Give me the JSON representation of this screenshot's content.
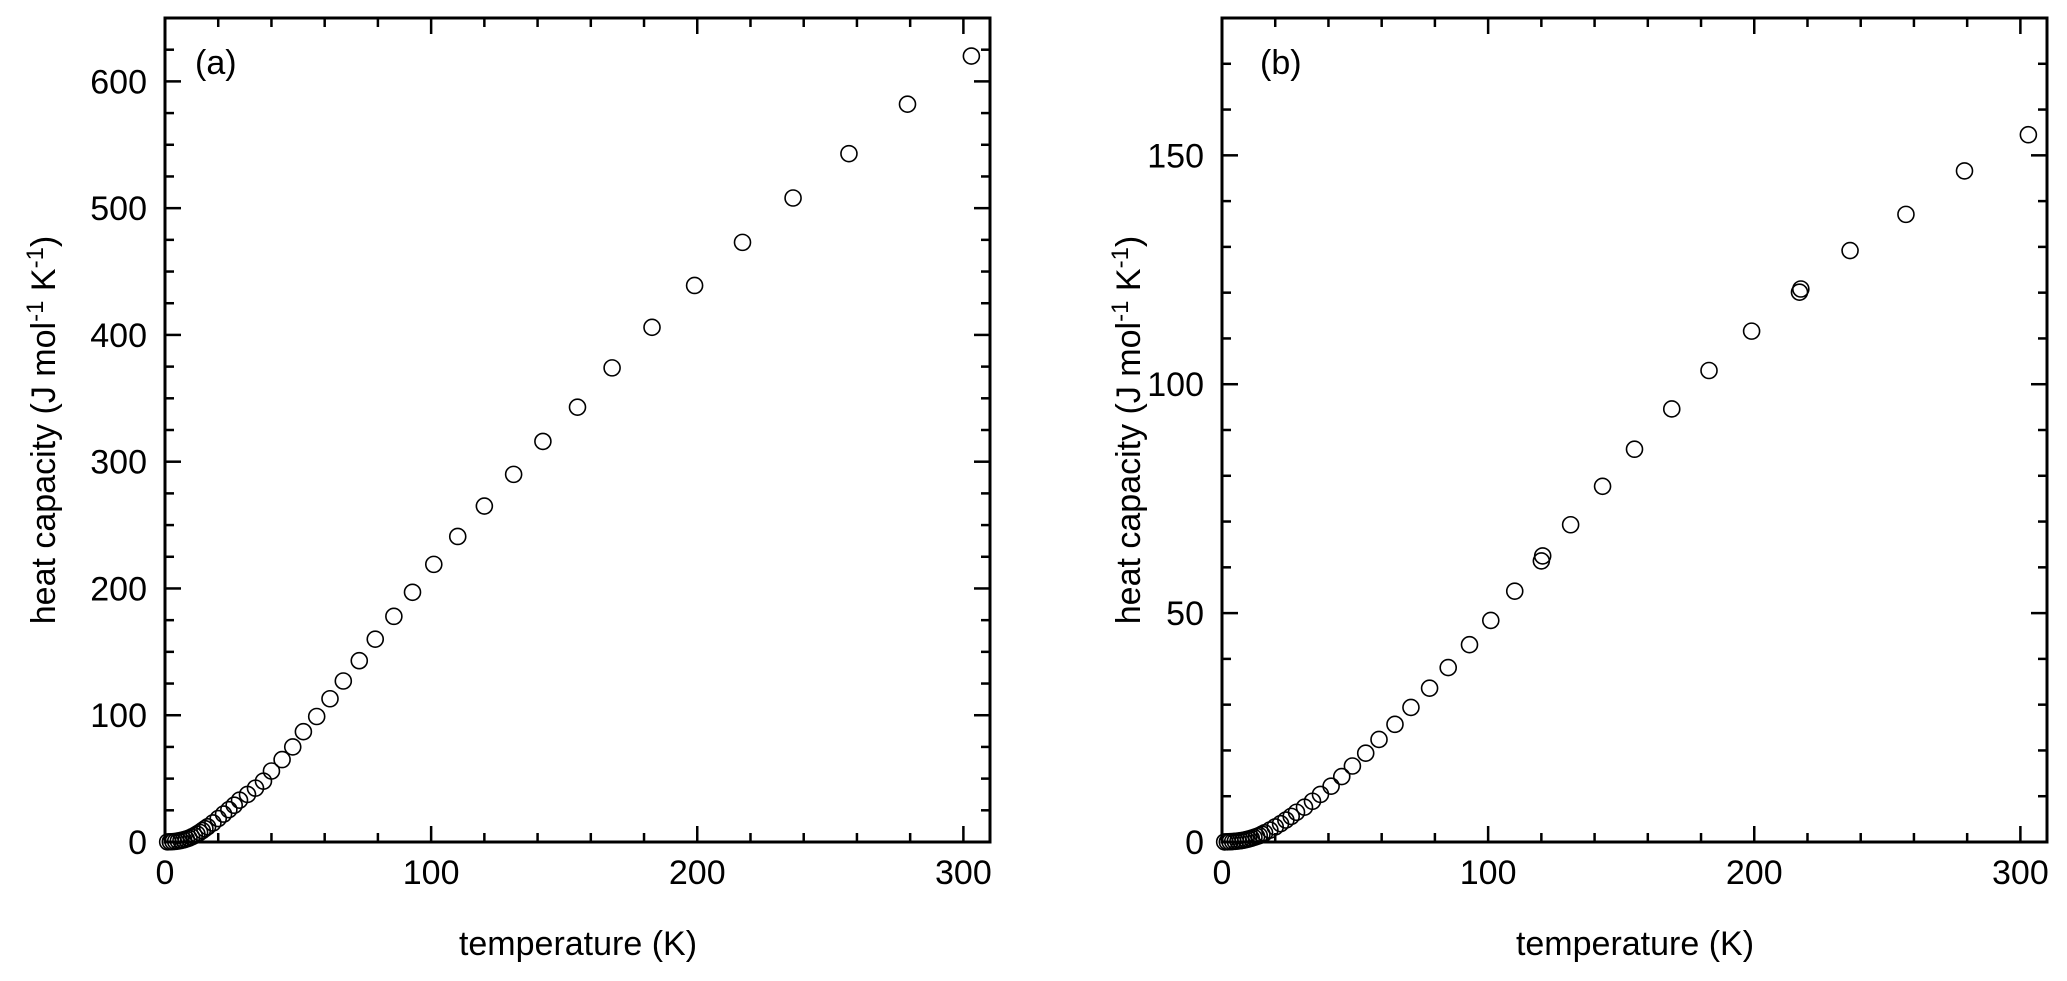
{
  "chart_data": [
    {
      "type": "scatter",
      "panel_label": "(a)",
      "xlabel": "temperature (K)",
      "ylabel": "heat capacity (J mol",
      "ylabel_sup1": "-1",
      "ylabel_mid": " K",
      "ylabel_sup2": "-1",
      "ylabel_end": ")",
      "xlim": [
        0,
        310
      ],
      "ylim": [
        0,
        650
      ],
      "xticks": [
        0,
        100,
        200,
        300
      ],
      "xtick_labels": [
        "0",
        "100",
        "200",
        "300"
      ],
      "yticks": [
        0,
        100,
        200,
        300,
        400,
        500,
        600
      ],
      "ytick_labels": [
        "0",
        "100",
        "200",
        "300",
        "400",
        "500",
        "600"
      ],
      "grid": false,
      "marker": "open-circle",
      "points": [
        [
          1,
          0.1
        ],
        [
          2,
          0.2
        ],
        [
          3,
          0.3
        ],
        [
          4,
          0.5
        ],
        [
          5,
          0.8
        ],
        [
          6,
          1.2
        ],
        [
          7,
          1.7
        ],
        [
          8,
          2.3
        ],
        [
          9,
          3
        ],
        [
          10,
          4
        ],
        [
          11,
          5
        ],
        [
          12,
          6.3
        ],
        [
          13,
          7.6
        ],
        [
          14,
          9
        ],
        [
          15,
          10.5
        ],
        [
          16,
          12
        ],
        [
          18,
          15
        ],
        [
          20,
          18.5
        ],
        [
          22,
          22
        ],
        [
          24,
          25.5
        ],
        [
          26,
          29
        ],
        [
          28,
          33
        ],
        [
          31,
          37.5
        ],
        [
          34,
          42.5
        ],
        [
          37,
          48
        ],
        [
          40,
          56
        ],
        [
          44,
          65
        ],
        [
          48,
          75
        ],
        [
          52,
          87
        ],
        [
          57,
          99
        ],
        [
          62,
          113
        ],
        [
          67,
          127
        ],
        [
          73,
          143
        ],
        [
          79,
          160
        ],
        [
          86,
          178
        ],
        [
          93,
          197
        ],
        [
          101,
          219
        ],
        [
          110,
          241
        ],
        [
          120,
          265
        ],
        [
          131,
          290
        ],
        [
          142,
          316
        ],
        [
          155,
          343
        ],
        [
          168,
          374
        ],
        [
          183,
          406
        ],
        [
          199,
          439
        ],
        [
          217,
          473
        ],
        [
          236,
          508
        ],
        [
          257,
          543
        ],
        [
          279,
          582
        ],
        [
          303,
          620
        ]
      ]
    },
    {
      "type": "scatter",
      "panel_label": "(b)",
      "xlabel": "temperature (K)",
      "ylabel": "heat capacity (J mol",
      "ylabel_sup1": "-1",
      "ylabel_mid": " K",
      "ylabel_sup2": "-1",
      "ylabel_end": ")",
      "xlim": [
        0,
        310
      ],
      "ylim": [
        0,
        180
      ],
      "xticks": [
        0,
        100,
        200,
        300
      ],
      "xtick_labels": [
        "0",
        "100",
        "200",
        "300"
      ],
      "yticks": [
        0,
        50,
        100,
        150
      ],
      "ytick_labels": [
        "0",
        "50",
        "100",
        "150"
      ],
      "grid": false,
      "marker": "open-circle",
      "points": [
        [
          1,
          0.02
        ],
        [
          2,
          0.04
        ],
        [
          3,
          0.06
        ],
        [
          4,
          0.1
        ],
        [
          5,
          0.15
        ],
        [
          6,
          0.2
        ],
        [
          7,
          0.28
        ],
        [
          8,
          0.38
        ],
        [
          9,
          0.5
        ],
        [
          10,
          0.65
        ],
        [
          11,
          0.82
        ],
        [
          12,
          1.0
        ],
        [
          13,
          1.2
        ],
        [
          14,
          1.4
        ],
        [
          15,
          1.7
        ],
        [
          16,
          2.0
        ],
        [
          18,
          2.6
        ],
        [
          20,
          3.3
        ],
        [
          22,
          4.0
        ],
        [
          24,
          4.8
        ],
        [
          26,
          5.6
        ],
        [
          28,
          6.5
        ],
        [
          31,
          7.6
        ],
        [
          34,
          8.9
        ],
        [
          37,
          10.4
        ],
        [
          41,
          12.2
        ],
        [
          45,
          14.3
        ],
        [
          49,
          16.6
        ],
        [
          54,
          19.4
        ],
        [
          59,
          22.4
        ],
        [
          65,
          25.7
        ],
        [
          71,
          29.4
        ],
        [
          78,
          33.6
        ],
        [
          85,
          38.1
        ],
        [
          93,
          43.1
        ],
        [
          101,
          48.4
        ],
        [
          110,
          54.8
        ],
        [
          120,
          61.4
        ],
        [
          120.5,
          62.5
        ],
        [
          131,
          69.3
        ],
        [
          143,
          77.7
        ],
        [
          155,
          85.8
        ],
        [
          169,
          94.6
        ],
        [
          183,
          103
        ],
        [
          199,
          111.6
        ],
        [
          217,
          120.1
        ],
        [
          217.5,
          120.8
        ],
        [
          236,
          129.2
        ],
        [
          257,
          137.1
        ],
        [
          279,
          146.6
        ],
        [
          303,
          154.5
        ]
      ]
    }
  ]
}
